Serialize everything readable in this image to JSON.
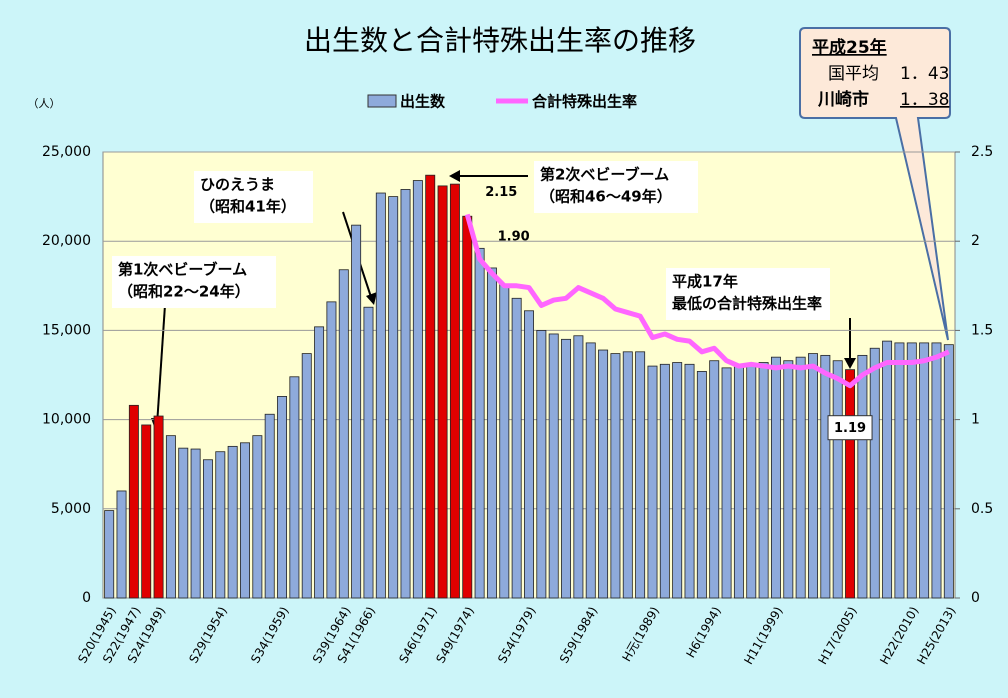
{
  "chart_data": {
    "type": "bar",
    "title": "出生数と合計特殊出生率の推移",
    "y_label": "（人）",
    "categories": [
      "S20(1945)",
      null,
      "S22(1947)",
      null,
      "S24(1949)",
      null,
      null,
      null,
      null,
      "S29(1954)",
      null,
      null,
      null,
      null,
      "S34(1959)",
      null,
      null,
      null,
      null,
      "S39(1964)",
      null,
      "S41(1966)",
      null,
      null,
      null,
      null,
      "S46(1971)",
      null,
      null,
      "S49(1974)",
      null,
      null,
      null,
      null,
      "S54(1979)",
      null,
      null,
      null,
      null,
      "S59(1984)",
      null,
      null,
      null,
      null,
      "H元(1989)",
      null,
      null,
      null,
      null,
      "H6(1994)",
      null,
      null,
      null,
      null,
      "H11(1999)",
      null,
      null,
      null,
      null,
      null,
      "H17(2005)",
      null,
      null,
      null,
      null,
      "H22(2010)",
      null,
      null,
      "H25(2013)"
    ],
    "series": [
      {
        "name": "出生数",
        "color": "#8eaadb",
        "colors": [
          "#8eaadb",
          "#8eaadb",
          "#e00000",
          "#e00000",
          "#e00000",
          "#8eaadb",
          "#8eaadb",
          "#8eaadb",
          "#8eaadb",
          "#8eaadb",
          "#8eaadb",
          "#8eaadb",
          "#8eaadb",
          "#8eaadb",
          "#8eaadb",
          "#8eaadb",
          "#8eaadb",
          "#8eaadb",
          "#8eaadb",
          "#8eaadb",
          "#8eaadb",
          "#8eaadb",
          "#8eaadb",
          "#8eaadb",
          "#8eaadb",
          "#8eaadb",
          "#e00000",
          "#e00000",
          "#e00000",
          "#e00000",
          "#8eaadb",
          "#8eaadb",
          "#8eaadb",
          "#8eaadb",
          "#8eaadb",
          "#8eaadb",
          "#8eaadb",
          "#8eaadb",
          "#8eaadb",
          "#8eaadb",
          "#8eaadb",
          "#8eaadb",
          "#8eaadb",
          "#8eaadb",
          "#8eaadb",
          "#8eaadb",
          "#8eaadb",
          "#8eaadb",
          "#8eaadb",
          "#8eaadb",
          "#8eaadb",
          "#8eaadb",
          "#8eaadb",
          "#8eaadb",
          "#8eaadb",
          "#8eaadb",
          "#8eaadb",
          "#8eaadb",
          "#8eaadb",
          "#8eaadb",
          "#e00000",
          "#8eaadb",
          "#8eaadb",
          "#8eaadb",
          "#8eaadb",
          "#8eaadb",
          "#8eaadb",
          "#8eaadb",
          "#8eaadb"
        ],
        "values": [
          4900,
          6000,
          10800,
          9700,
          10200,
          9100,
          8400,
          8350,
          7750,
          8200,
          8500,
          8700,
          9100,
          10300,
          11300,
          12400,
          13700,
          15200,
          16600,
          18400,
          20900,
          16300,
          22700,
          22500,
          22900,
          23400,
          23700,
          23100,
          23200,
          21400,
          19600,
          18500,
          17600,
          16800,
          16100,
          15000,
          14800,
          14500,
          14700,
          14300,
          13900,
          13700,
          13800,
          13800,
          13000,
          13100,
          13200,
          13100,
          12700,
          13300,
          12900,
          13000,
          13100,
          13200,
          13500,
          13300,
          13500,
          13700,
          13600,
          13300,
          12800,
          13600,
          14000,
          14400,
          14300,
          14300,
          14300,
          14300,
          14200
        ]
      },
      {
        "name": "合計特殊出生率",
        "color": "#ff66ff",
        "axis": "y2",
        "values": [
          null,
          null,
          null,
          null,
          null,
          null,
          null,
          null,
          null,
          null,
          null,
          null,
          null,
          null,
          null,
          null,
          null,
          null,
          null,
          null,
          null,
          null,
          null,
          null,
          null,
          null,
          null,
          null,
          null,
          2.15,
          1.9,
          1.82,
          1.75,
          1.75,
          1.74,
          1.64,
          1.67,
          1.68,
          1.74,
          1.71,
          1.68,
          1.62,
          1.6,
          1.58,
          1.46,
          1.48,
          1.45,
          1.44,
          1.38,
          1.4,
          1.33,
          1.3,
          1.31,
          1.3,
          1.29,
          1.3,
          1.29,
          1.3,
          1.26,
          1.23,
          1.19,
          1.25,
          1.29,
          1.32,
          1.32,
          1.32,
          1.33,
          1.35,
          1.38
        ],
        "value_labels": [
          null,
          null,
          null,
          null,
          null,
          null,
          null,
          null,
          null,
          null,
          null,
          null,
          null,
          null,
          null,
          null,
          null,
          null,
          null,
          null,
          null,
          null,
          null,
          null,
          null,
          null,
          null,
          null,
          null,
          "2.15",
          "1.90",
          null,
          null,
          null,
          null,
          null,
          null,
          null,
          null,
          null,
          null,
          null,
          null,
          null,
          null,
          null,
          null,
          null,
          null,
          null,
          null,
          null,
          null,
          null,
          null,
          null,
          null,
          null,
          null,
          null,
          "1.19",
          null,
          null,
          null,
          null,
          null,
          null,
          null,
          null
        ]
      }
    ],
    "ylim": [
      0,
      25000
    ],
    "yticks": [
      0,
      {
        "value": 5000,
        "label": "5,000"
      },
      {
        "value": 10000,
        "label": "10,000"
      },
      {
        "value": 15000,
        "label": "15,000"
      },
      {
        "value": 20000,
        "label": "20,000"
      },
      {
        "value": 25000,
        "label": "25,000"
      }
    ],
    "y2lim": [
      0,
      2.5
    ],
    "y2ticks": [
      0,
      0.5,
      1,
      1.5,
      2,
      2.5
    ],
    "grid": true,
    "legend": "top",
    "annotations": [
      [
        "第1次ベビーブーム",
        "（昭和22～24年）"
      ],
      [
        "ひのえうま",
        "（昭和41年）"
      ],
      [
        "第2次ベビーブーム",
        "（昭和46～49年）"
      ],
      [
        "平成17年",
        "最低の合計特殊出生率"
      ]
    ],
    "callout": {
      "title": "平成25年",
      "rows": [
        [
          "国平均",
          "1．43"
        ],
        [
          "川崎市",
          "1．38"
        ]
      ]
    }
  }
}
